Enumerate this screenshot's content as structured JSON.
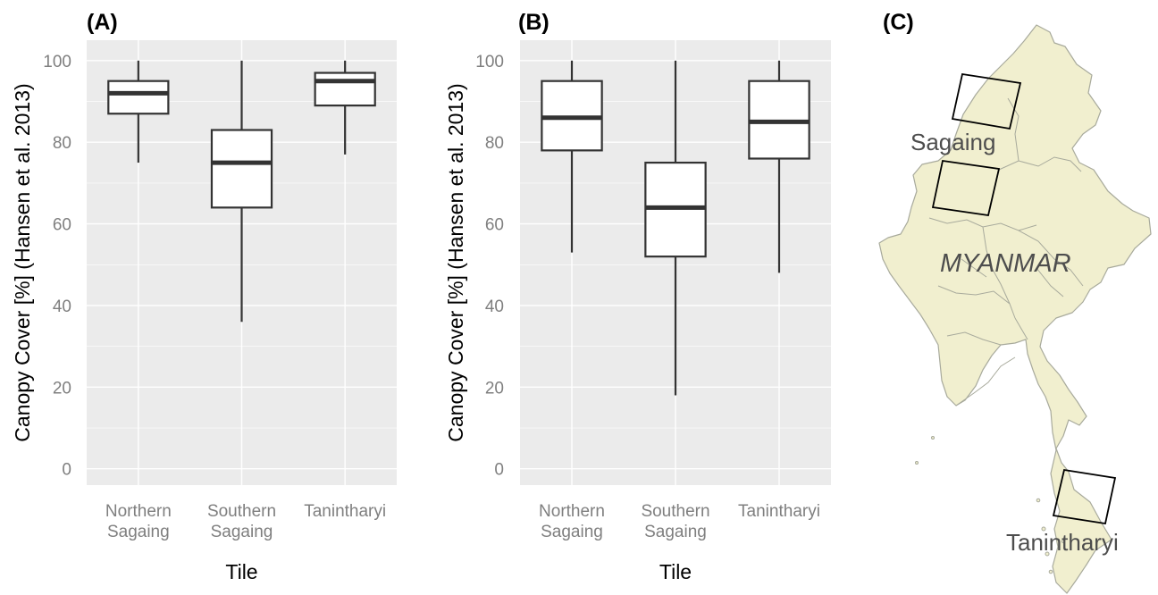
{
  "panels": {
    "a": {
      "label": "(A)"
    },
    "b": {
      "label": "(B)"
    },
    "c": {
      "label": "(C)"
    }
  },
  "colors": {
    "panel_bg": "#ebebeb",
    "grid": "#ffffff",
    "box_fill": "#ffffff",
    "box_stroke": "#333333",
    "map_land": "#f1efcf",
    "map_border": "#a8aa9c",
    "map_tile": "#000000"
  },
  "chart_data": [
    {
      "type": "box",
      "title": "(A)",
      "xlabel": "Tile",
      "ylabel": "Canopy Cover [%] (Hansen et al. 2013)",
      "ylim": [
        -4,
        105
      ],
      "yticks": [
        "0",
        "20",
        "40",
        "60",
        "80",
        "100"
      ],
      "categories": [
        "Northern Sagaing",
        "Southern Sagaing",
        "Tanintharyi"
      ],
      "boxes": [
        {
          "name": "Northern Sagaing",
          "min": 75,
          "q1": 87,
          "median": 92,
          "q3": 95,
          "max": 100
        },
        {
          "name": "Southern Sagaing",
          "min": 36,
          "q1": 64,
          "median": 75,
          "q3": 83,
          "max": 100
        },
        {
          "name": "Tanintharyi",
          "min": 77,
          "q1": 89,
          "median": 95,
          "q3": 97,
          "max": 100
        }
      ],
      "grid": true
    },
    {
      "type": "box",
      "title": "(B)",
      "xlabel": "Tile",
      "ylabel": "Canopy Cover [%] (Hansen et al. 2013)",
      "ylim": [
        -4,
        105
      ],
      "yticks": [
        "0",
        "20",
        "40",
        "60",
        "80",
        "100"
      ],
      "categories": [
        "Northern Sagaing",
        "Southern Sagaing",
        "Tanintharyi"
      ],
      "boxes": [
        {
          "name": "Northern Sagaing",
          "min": 53,
          "q1": 78,
          "median": 86,
          "q3": 95,
          "max": 100
        },
        {
          "name": "Southern Sagaing",
          "min": 18,
          "q1": 52,
          "median": 64,
          "q3": 75,
          "max": 100
        },
        {
          "name": "Tanintharyi",
          "min": 48,
          "q1": 76,
          "median": 85,
          "q3": 95,
          "max": 100
        }
      ],
      "grid": true
    }
  ],
  "map": {
    "country_label": "MYANMAR",
    "region_labels": [
      "Sagaing",
      "Tanintharyi"
    ]
  }
}
